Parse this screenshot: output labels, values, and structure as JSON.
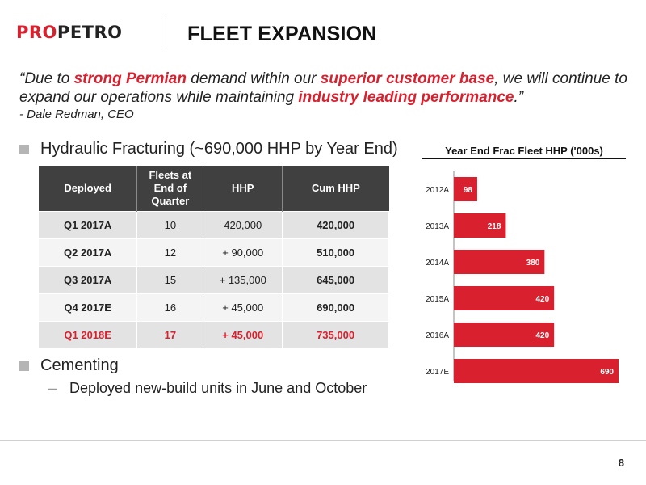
{
  "header": {
    "logo_part1": "PRO",
    "logo_part2": "PETRO",
    "title": "FLEET EXPANSION"
  },
  "quote": {
    "segments": [
      {
        "text": "“Due to ",
        "highlight": false
      },
      {
        "text": "strong Permian",
        "highlight": true
      },
      {
        "text": " demand within our ",
        "highlight": false
      },
      {
        "text": "superior customer base",
        "highlight": true
      },
      {
        "text": ", we will continue to expand our operations while maintaining ",
        "highlight": false
      },
      {
        "text": "industry leading performance",
        "highlight": true
      },
      {
        "text": ".”",
        "highlight": false
      }
    ],
    "author": "- Dale Redman, CEO"
  },
  "bullets": {
    "hydraulic": "Hydraulic Fracturing (~690,000 HHP by Year End)",
    "cementing": "Cementing",
    "cementing_sub": "Deployed new-build units in June and October"
  },
  "table": {
    "headers": [
      "Deployed",
      "Fleets at End of Quarter",
      "HHP",
      "Cum HHP"
    ],
    "rows": [
      {
        "quarter": "Q1 2017A",
        "fleets": "10",
        "hhp": "420,000",
        "cum": "420,000",
        "highlight": false
      },
      {
        "quarter": "Q2 2017A",
        "fleets": "12",
        "hhp": "+ 90,000",
        "cum": "510,000",
        "highlight": false
      },
      {
        "quarter": "Q3 2017A",
        "fleets": "15",
        "hhp": "+ 135,000",
        "cum": "645,000",
        "highlight": false
      },
      {
        "quarter": "Q4 2017E",
        "fleets": "16",
        "hhp": "+ 45,000",
        "cum": "690,000",
        "highlight": false
      },
      {
        "quarter": "Q1 2018E",
        "fleets": "17",
        "hhp": "+ 45,000",
        "cum": "735,000",
        "highlight": true
      }
    ]
  },
  "chart_data": {
    "type": "bar",
    "orientation": "horizontal",
    "title": "Year End Frac Fleet HHP ('000s)",
    "categories": [
      "2012A",
      "2013A",
      "2014A",
      "2015A",
      "2016A",
      "2017E"
    ],
    "values": [
      98,
      218,
      380,
      420,
      420,
      690
    ],
    "xlim": [
      0,
      690
    ],
    "bar_color": "#d9202e",
    "data_labels": true,
    "grid": false,
    "legend": "none"
  },
  "footer": {
    "page_number": "8"
  },
  "colors": {
    "accent": "#d9202e",
    "header_bg": "#404040"
  }
}
